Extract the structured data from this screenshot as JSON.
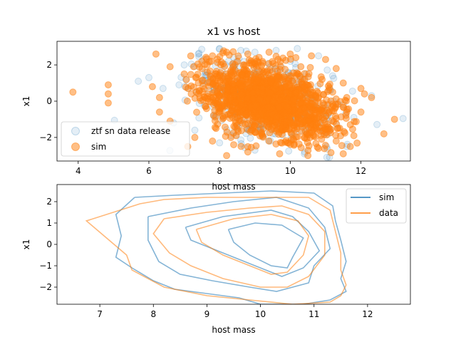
{
  "chart_data": [
    {
      "type": "scatter",
      "title": "x1 vs host",
      "xlabel": "host mass",
      "ylabel": "x1",
      "xlim": [
        3.4,
        13.4
      ],
      "ylim": [
        -3.3,
        3.3
      ],
      "xticks": [
        "4",
        "6",
        "8",
        "10",
        "12"
      ],
      "yticks": [
        "2",
        "0",
        "−2"
      ],
      "grid": false,
      "legend_position": "lower-left",
      "legend": [
        "ztf sn data release",
        "sim"
      ],
      "series": [
        {
          "name": "ztf sn data release",
          "color": "#1f77b4",
          "alpha": 0.12,
          "points": [
            [
              5.7,
              1.1
            ],
            [
              6.0,
              1.3
            ],
            [
              6.4,
              0.7
            ],
            [
              7.0,
              2.0
            ],
            [
              7.4,
              2.6
            ],
            [
              7.6,
              1.6
            ],
            [
              8.0,
              2.9
            ],
            [
              8.6,
              2.8
            ],
            [
              9.0,
              2.7
            ],
            [
              9.6,
              2.8
            ],
            [
              10.2,
              2.9
            ],
            [
              10.8,
              2.5
            ],
            [
              11.2,
              1.4
            ],
            [
              11.5,
              -0.2
            ],
            [
              11.8,
              -0.9
            ],
            [
              12.3,
              0.3
            ],
            [
              11.6,
              -2.5
            ],
            [
              10.4,
              -2.9
            ],
            [
              9.0,
              -2.7
            ],
            [
              8.0,
              -2.3
            ],
            [
              7.3,
              -1.6
            ],
            [
              6.7,
              -1.2
            ],
            [
              7.9,
              -0.8
            ],
            [
              8.9,
              0.4
            ],
            [
              9.7,
              -0.5
            ],
            [
              10.3,
              0.6
            ],
            [
              10.8,
              -1.2
            ],
            [
              9.3,
              -1.8
            ],
            [
              8.4,
              1.9
            ],
            [
              10.0,
              2.2
            ]
          ]
        },
        {
          "name": "sim",
          "color": "#ff7f0e",
          "alpha": 0.5,
          "points": [
            [
              3.85,
              0.5
            ],
            [
              4.85,
              0.9
            ],
            [
              4.85,
              0.4
            ],
            [
              4.85,
              -0.1
            ],
            [
              6.2,
              2.6
            ],
            [
              6.6,
              1.9
            ],
            [
              6.1,
              0.8
            ],
            [
              6.3,
              0.2
            ],
            [
              6.3,
              -0.6
            ],
            [
              6.6,
              -1.1
            ],
            [
              7.1,
              -2.5
            ],
            [
              7.3,
              -2.0
            ],
            [
              7.0,
              1.5
            ],
            [
              7.5,
              2.2
            ],
            [
              7.8,
              2.5
            ],
            [
              8.2,
              2.7
            ],
            [
              8.8,
              2.6
            ],
            [
              9.4,
              2.7
            ],
            [
              10.0,
              2.6
            ],
            [
              10.6,
              2.5
            ],
            [
              11.0,
              2.3
            ],
            [
              11.3,
              1.8
            ],
            [
              11.5,
              1.0
            ],
            [
              11.6,
              0.2
            ],
            [
              11.6,
              -0.6
            ],
            [
              11.7,
              -1.3
            ],
            [
              11.8,
              -1.9
            ],
            [
              11.7,
              -2.5
            ],
            [
              11.5,
              -2.9
            ],
            [
              10.5,
              -3.0
            ],
            [
              9.7,
              -2.9
            ],
            [
              8.8,
              -2.8
            ],
            [
              8.2,
              -3.0
            ],
            [
              7.8,
              -2.2
            ],
            [
              12.0,
              0.7
            ],
            [
              12.1,
              0.4
            ],
            [
              12.3,
              0.2
            ],
            [
              12.0,
              -0.6
            ],
            [
              12.65,
              -1.8
            ],
            [
              12.95,
              -1.0
            ],
            [
              7.2,
              0.4
            ],
            [
              7.6,
              -0.3
            ],
            [
              7.4,
              1.0
            ],
            [
              8.0,
              1.4
            ],
            [
              8.3,
              0.2
            ],
            [
              8.5,
              -0.9
            ],
            [
              8.9,
              -1.6
            ],
            [
              9.2,
              1.7
            ],
            [
              9.6,
              0.9
            ],
            [
              9.9,
              -0.3
            ],
            [
              10.1,
              -1.2
            ],
            [
              10.4,
              -2.0
            ],
            [
              10.7,
              -0.6
            ],
            [
              10.9,
              1.2
            ],
            [
              11.1,
              -1.5
            ],
            [
              11.2,
              0.5
            ],
            [
              9.4,
              -2.2
            ],
            [
              8.7,
              2.0
            ],
            [
              7.9,
              -1.5
            ],
            [
              10.3,
              1.9
            ],
            [
              9.1,
              0.5
            ],
            [
              8.4,
              -2.4
            ],
            [
              10.8,
              -2.6
            ],
            [
              11.3,
              -2.2
            ]
          ]
        }
      ]
    },
    {
      "type": "line",
      "title": "",
      "xlabel": "host mass",
      "ylabel": "x1",
      "xlim": [
        6.2,
        12.8
      ],
      "ylim": [
        -2.8,
        2.8
      ],
      "xticks": [
        "7",
        "8",
        "9",
        "10",
        "11",
        "12"
      ],
      "yticks": [
        "2",
        "1",
        "0",
        "−1",
        "−2"
      ],
      "grid": false,
      "legend_position": "upper-right",
      "legend": [
        "sim",
        "data"
      ],
      "series": [
        {
          "name": "sim",
          "color": "#1f77b4",
          "alpha": 0.55,
          "contours": [
            [
              [
                7.65,
                2.2
              ],
              [
                8.4,
                2.3
              ],
              [
                9.3,
                2.4
              ],
              [
                10.2,
                2.5
              ],
              [
                11.0,
                2.4
              ],
              [
                11.35,
                1.8
              ],
              [
                11.4,
                1.1
              ],
              [
                11.5,
                0.2
              ],
              [
                11.6,
                -0.8
              ],
              [
                11.5,
                -1.6
              ],
              [
                11.6,
                -2.2
              ],
              [
                11.3,
                -2.6
              ],
              [
                10.8,
                -2.8
              ],
              [
                10.0,
                -2.8
              ],
              [
                9.6,
                -2.5
              ],
              [
                9.0,
                -2.3
              ],
              [
                8.4,
                -2.1
              ],
              [
                8.0,
                -1.7
              ],
              [
                7.6,
                -1.1
              ],
              [
                7.3,
                -0.6
              ],
              [
                7.4,
                0.4
              ],
              [
                7.3,
                1.4
              ],
              [
                7.65,
                2.2
              ]
            ],
            [
              [
                7.9,
                1.3
              ],
              [
                8.7,
                1.7
              ],
              [
                9.5,
                2.0
              ],
              [
                10.3,
                2.2
              ],
              [
                10.9,
                1.7
              ],
              [
                11.2,
                0.8
              ],
              [
                11.3,
                -0.2
              ],
              [
                11.0,
                -1.0
              ],
              [
                10.9,
                -1.8
              ],
              [
                10.3,
                -2.2
              ],
              [
                9.8,
                -2.0
              ],
              [
                9.1,
                -1.7
              ],
              [
                8.5,
                -1.4
              ],
              [
                8.1,
                -0.8
              ],
              [
                7.9,
                0.2
              ],
              [
                7.9,
                1.3
              ]
            ],
            [
              [
                8.6,
                0.8
              ],
              [
                9.3,
                1.3
              ],
              [
                10.2,
                1.6
              ],
              [
                10.6,
                1.3
              ],
              [
                10.9,
                0.6
              ],
              [
                11.1,
                -0.3
              ],
              [
                10.8,
                -1.1
              ],
              [
                10.4,
                -1.5
              ],
              [
                10.2,
                -1.3
              ],
              [
                9.8,
                -0.9
              ],
              [
                9.2,
                -0.3
              ],
              [
                8.7,
                0.2
              ],
              [
                8.6,
                0.8
              ]
            ],
            [
              [
                9.4,
                0.7
              ],
              [
                9.9,
                1.0
              ],
              [
                10.4,
                0.9
              ],
              [
                10.8,
                0.3
              ],
              [
                10.6,
                -0.6
              ],
              [
                10.5,
                -1.1
              ],
              [
                10.2,
                -1.0
              ],
              [
                9.8,
                -0.5
              ],
              [
                9.5,
                0.1
              ],
              [
                9.4,
                0.7
              ]
            ]
          ]
        },
        {
          "name": "data",
          "color": "#ff7f0e",
          "alpha": 0.55,
          "contours": [
            [
              [
                7.75,
                1.9
              ],
              [
                8.2,
                2.1
              ],
              [
                9.0,
                2.2
              ],
              [
                10.0,
                2.2
              ],
              [
                10.9,
                2.2
              ],
              [
                11.3,
                1.6
              ],
              [
                11.4,
                0.6
              ],
              [
                11.5,
                -0.4
              ],
              [
                11.5,
                -1.2
              ],
              [
                11.6,
                -1.9
              ],
              [
                11.5,
                -2.4
              ],
              [
                11.3,
                -2.7
              ],
              [
                10.6,
                -2.8
              ],
              [
                9.8,
                -2.6
              ],
              [
                9.0,
                -2.4
              ],
              [
                8.2,
                -2.0
              ],
              [
                7.6,
                -1.2
              ],
              [
                7.5,
                -0.5
              ],
              [
                6.75,
                1.1
              ],
              [
                7.75,
                1.9
              ]
            ],
            [
              [
                8.2,
                1.2
              ],
              [
                9.0,
                1.5
              ],
              [
                9.8,
                1.7
              ],
              [
                10.4,
                1.8
              ],
              [
                10.9,
                1.4
              ],
              [
                11.2,
                0.6
              ],
              [
                11.2,
                -0.5
              ],
              [
                10.9,
                -1.5
              ],
              [
                10.5,
                -2.0
              ],
              [
                10.0,
                -2.0
              ],
              [
                9.3,
                -1.6
              ],
              [
                8.7,
                -1.0
              ],
              [
                8.3,
                -0.4
              ],
              [
                8.0,
                0.5
              ],
              [
                8.2,
                1.2
              ]
            ],
            [
              [
                8.8,
                0.7
              ],
              [
                9.5,
                1.2
              ],
              [
                10.2,
                1.4
              ],
              [
                10.7,
                1.1
              ],
              [
                10.9,
                0.4
              ],
              [
                10.8,
                -0.5
              ],
              [
                10.5,
                -1.3
              ],
              [
                10.2,
                -1.4
              ],
              [
                9.8,
                -1.0
              ],
              [
                9.3,
                -0.5
              ],
              [
                8.9,
                0.1
              ],
              [
                8.8,
                0.7
              ]
            ]
          ]
        }
      ]
    }
  ]
}
